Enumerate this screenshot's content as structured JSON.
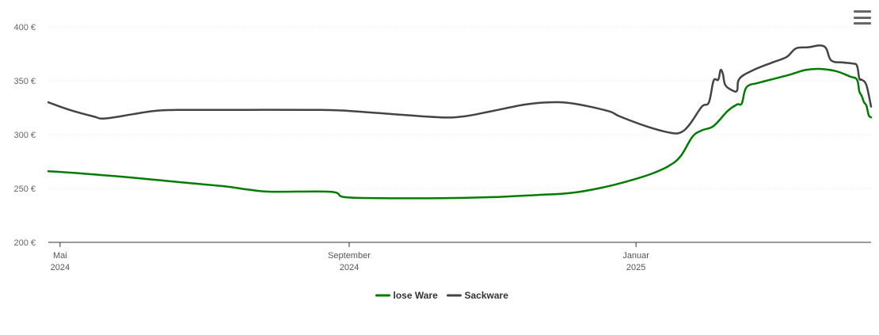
{
  "chart_data": {
    "type": "line",
    "y_ticks": [
      "200 €",
      "250 €",
      "300 €",
      "350 €",
      "400 €"
    ],
    "ylim": [
      200,
      400
    ],
    "x_ticks": [
      {
        "date": "2024-05-01",
        "label_top": "Mai",
        "label_bottom": "2024"
      },
      {
        "date": "2024-09-01",
        "label_top": "September",
        "label_bottom": "2024"
      },
      {
        "date": "2025-01-01",
        "label_top": "Januar",
        "label_bottom": "2025"
      }
    ],
    "xlim": [
      "2024-04-26",
      "2025-04-11"
    ],
    "grid": true,
    "legend_position": "bottom-center",
    "series": [
      {
        "name": "lose Ware",
        "color": "#007c00",
        "points": [
          [
            "2024-04-26",
            266
          ],
          [
            "2024-05-10",
            264
          ],
          [
            "2024-06-01",
            260
          ],
          [
            "2024-06-20",
            256
          ],
          [
            "2024-07-10",
            252
          ],
          [
            "2024-07-20",
            249
          ],
          [
            "2024-07-30",
            247
          ],
          [
            "2024-08-24",
            247
          ],
          [
            "2024-08-30",
            242
          ],
          [
            "2024-09-15",
            241
          ],
          [
            "2024-10-10",
            241
          ],
          [
            "2024-11-01",
            242
          ],
          [
            "2024-11-20",
            244
          ],
          [
            "2024-12-05",
            246
          ],
          [
            "2024-12-20",
            252
          ],
          [
            "2025-01-01",
            259
          ],
          [
            "2025-01-08",
            264
          ],
          [
            "2025-01-15",
            271
          ],
          [
            "2025-01-20",
            280
          ],
          [
            "2025-01-25",
            298
          ],
          [
            "2025-01-29",
            304
          ],
          [
            "2025-02-03",
            308
          ],
          [
            "2025-02-09",
            322
          ],
          [
            "2025-02-13",
            328
          ],
          [
            "2025-02-15",
            329
          ],
          [
            "2025-02-17",
            344
          ],
          [
            "2025-02-22",
            348
          ],
          [
            "2025-03-01",
            352
          ],
          [
            "2025-03-08",
            356
          ],
          [
            "2025-03-14",
            360
          ],
          [
            "2025-03-20",
            361
          ],
          [
            "2025-03-27",
            359
          ],
          [
            "2025-04-02",
            354
          ],
          [
            "2025-04-05",
            351
          ],
          [
            "2025-04-06",
            340
          ],
          [
            "2025-04-07",
            336
          ],
          [
            "2025-04-08",
            330
          ],
          [
            "2025-04-09",
            327
          ],
          [
            "2025-04-10",
            318
          ],
          [
            "2025-04-11",
            316
          ]
        ]
      },
      {
        "name": "Sackware",
        "color": "#444444",
        "points": [
          [
            "2024-04-26",
            330
          ],
          [
            "2024-05-05",
            323
          ],
          [
            "2024-05-15",
            317
          ],
          [
            "2024-05-20",
            315
          ],
          [
            "2024-06-01",
            319
          ],
          [
            "2024-06-10",
            322
          ],
          [
            "2024-06-20",
            323
          ],
          [
            "2024-07-20",
            323
          ],
          [
            "2024-08-20",
            323
          ],
          [
            "2024-09-01",
            322
          ],
          [
            "2024-09-20",
            319
          ],
          [
            "2024-10-10",
            316
          ],
          [
            "2024-10-20",
            317
          ],
          [
            "2024-11-01",
            322
          ],
          [
            "2024-11-15",
            328
          ],
          [
            "2024-11-25",
            330
          ],
          [
            "2024-12-05",
            329
          ],
          [
            "2024-12-20",
            322
          ],
          [
            "2024-12-25",
            317
          ],
          [
            "2025-01-05",
            308
          ],
          [
            "2025-01-15",
            302
          ],
          [
            "2025-01-20",
            302
          ],
          [
            "2025-01-24",
            310
          ],
          [
            "2025-01-29",
            326
          ],
          [
            "2025-02-01",
            330
          ],
          [
            "2025-02-03",
            350
          ],
          [
            "2025-02-05",
            351
          ],
          [
            "2025-02-06",
            360
          ],
          [
            "2025-02-07",
            356
          ],
          [
            "2025-02-08",
            346
          ],
          [
            "2025-02-11",
            341
          ],
          [
            "2025-02-13",
            341
          ],
          [
            "2025-02-14",
            352
          ],
          [
            "2025-02-20",
            360
          ],
          [
            "2025-02-28",
            367
          ],
          [
            "2025-03-06",
            372
          ],
          [
            "2025-03-10",
            380
          ],
          [
            "2025-03-15",
            381
          ],
          [
            "2025-03-22",
            382
          ],
          [
            "2025-03-25",
            369
          ],
          [
            "2025-03-30",
            367
          ],
          [
            "2025-04-03",
            366
          ],
          [
            "2025-04-05",
            364
          ],
          [
            "2025-04-06",
            352
          ],
          [
            "2025-04-07",
            351
          ],
          [
            "2025-04-09",
            346
          ],
          [
            "2025-04-11",
            326
          ]
        ]
      }
    ]
  },
  "legend": {
    "items": [
      {
        "name": "lose Ware",
        "color": "#007c00"
      },
      {
        "name": "Sackware",
        "color": "#444444"
      }
    ]
  },
  "menu": {
    "icon": "hamburger-menu-icon"
  }
}
